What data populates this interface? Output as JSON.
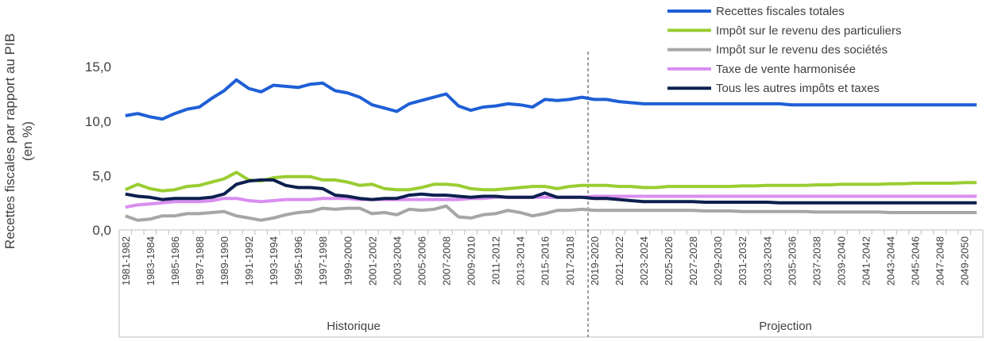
{
  "chart_data": {
    "type": "line",
    "y_label": "Recettes fiscales par rapport au PIB (en %)",
    "categories": [
      "1981-1982",
      null,
      "1983-1984",
      null,
      "1985-1986",
      null,
      "1987-1988",
      null,
      "1989-1990",
      null,
      "1991-1992",
      null,
      "1993-1994",
      null,
      "1995-1996",
      null,
      "1997-1998",
      null,
      "1999-2000",
      null,
      "2001-2002",
      null,
      "2003-2004",
      null,
      "2005-2006",
      null,
      "2007-2008",
      null,
      "2009-2010",
      null,
      "2011-2012",
      null,
      "2013-2014",
      null,
      "2015-2016",
      null,
      "2017-2018",
      null,
      "2019-2020",
      null,
      "2021-2022",
      null,
      "2023-2024",
      null,
      "2025-2026",
      null,
      "2027-2028",
      null,
      "2029-2030",
      null,
      "2031-2032",
      null,
      "2033-2034",
      null,
      "2035-2036",
      null,
      "2037-2038",
      null,
      "2039-2040",
      null,
      "2041-2042",
      null,
      "2043-2044",
      null,
      "2045-2046",
      null,
      "2047-2048",
      null,
      "2049-2050",
      null
    ],
    "groups": [
      "Historique",
      "Projection"
    ],
    "ylim": [
      0,
      16.4
    ],
    "yticks": [
      {
        "value": 0,
        "label": "0,0"
      },
      {
        "value": 5,
        "label": "5,0"
      },
      {
        "value": 10,
        "label": "10,0"
      },
      {
        "value": 15,
        "label": "15,0"
      }
    ],
    "series": [
      {
        "name": "Recettes fiscales totales",
        "color": "#1f5fd6",
        "values": [
          10.5,
          10.7,
          10.4,
          10.2,
          10.7,
          11.1,
          11.3,
          12.1,
          12.8,
          13.8,
          13.0,
          12.7,
          13.3,
          13.2,
          13.1,
          13.4,
          13.5,
          12.8,
          12.6,
          12.2,
          11.5,
          11.2,
          10.9,
          11.6,
          11.9,
          12.2,
          12.5,
          11.4,
          11.0,
          11.3,
          11.4,
          11.6,
          11.5,
          11.3,
          12.0,
          11.9,
          12.0,
          12.2,
          12.0,
          12.0,
          11.8,
          11.7,
          11.6,
          11.6,
          11.6,
          11.6,
          11.6,
          11.6,
          11.6,
          11.6,
          11.6,
          11.6,
          11.6,
          11.6,
          11.5,
          11.5,
          11.5,
          11.5,
          11.5,
          11.5,
          11.5,
          11.5,
          11.5,
          11.5,
          11.5,
          11.5,
          11.5,
          11.5,
          11.5,
          11.5
        ]
      },
      {
        "name": "Impôt sur le revenu des particuliers",
        "color": "#9acd32",
        "values": [
          3.7,
          4.2,
          3.8,
          3.6,
          3.7,
          4.0,
          4.1,
          4.4,
          4.7,
          5.3,
          4.6,
          4.5,
          4.8,
          4.9,
          4.9,
          4.9,
          4.6,
          4.6,
          4.4,
          4.1,
          4.2,
          3.8,
          3.7,
          3.7,
          3.9,
          4.2,
          4.2,
          4.1,
          3.8,
          3.7,
          3.7,
          3.8,
          3.9,
          4.0,
          4.0,
          3.8,
          4.0,
          4.1,
          4.1,
          4.1,
          4.0,
          4.0,
          3.9,
          3.9,
          4.0,
          4.0,
          4.0,
          4.0,
          4.0,
          4.0,
          4.05,
          4.05,
          4.1,
          4.1,
          4.1,
          4.1,
          4.15,
          4.15,
          4.2,
          4.2,
          4.2,
          4.2,
          4.25,
          4.25,
          4.3,
          4.3,
          4.3,
          4.3,
          4.35,
          4.35
        ]
      },
      {
        "name": "Impôt sur le revenu des sociétés",
        "color": "#a6a6a6",
        "values": [
          1.3,
          0.9,
          1.0,
          1.3,
          1.3,
          1.5,
          1.5,
          1.6,
          1.7,
          1.3,
          1.1,
          0.9,
          1.1,
          1.4,
          1.6,
          1.7,
          2.0,
          1.9,
          2.0,
          2.0,
          1.5,
          1.6,
          1.4,
          1.9,
          1.8,
          1.9,
          2.2,
          1.2,
          1.1,
          1.4,
          1.5,
          1.8,
          1.6,
          1.3,
          1.5,
          1.8,
          1.8,
          1.9,
          1.8,
          1.8,
          1.8,
          1.8,
          1.8,
          1.8,
          1.8,
          1.8,
          1.8,
          1.75,
          1.75,
          1.75,
          1.7,
          1.7,
          1.7,
          1.7,
          1.7,
          1.7,
          1.65,
          1.65,
          1.65,
          1.65,
          1.65,
          1.65,
          1.6,
          1.6,
          1.6,
          1.6,
          1.6,
          1.6,
          1.6,
          1.6
        ]
      },
      {
        "name": "Taxe de vente harmonisée",
        "color": "#d98ef0",
        "values": [
          2.1,
          2.3,
          2.4,
          2.5,
          2.6,
          2.6,
          2.6,
          2.7,
          2.9,
          2.9,
          2.7,
          2.6,
          2.7,
          2.8,
          2.8,
          2.8,
          2.9,
          2.9,
          2.9,
          2.8,
          2.8,
          2.8,
          2.8,
          2.8,
          2.8,
          2.8,
          2.8,
          2.8,
          2.9,
          2.9,
          3.0,
          3.0,
          3.0,
          3.0,
          3.0,
          3.0,
          3.0,
          3.0,
          3.1,
          3.1,
          3.1,
          3.1,
          3.1,
          3.1,
          3.1,
          3.1,
          3.1,
          3.1,
          3.1,
          3.1,
          3.1,
          3.1,
          3.1,
          3.1,
          3.1,
          3.1,
          3.1,
          3.1,
          3.1,
          3.1,
          3.1,
          3.1,
          3.1,
          3.1,
          3.1,
          3.1,
          3.1,
          3.1,
          3.1,
          3.1
        ]
      },
      {
        "name": "Tous les autres impôts et taxes",
        "color": "#0d1f4f",
        "values": [
          3.3,
          3.1,
          3.0,
          2.8,
          2.9,
          2.9,
          2.9,
          3.0,
          3.3,
          4.2,
          4.5,
          4.6,
          4.6,
          4.1,
          3.9,
          3.9,
          3.8,
          3.2,
          3.1,
          2.9,
          2.8,
          2.9,
          2.9,
          3.2,
          3.3,
          3.2,
          3.2,
          3.1,
          3.0,
          3.1,
          3.1,
          3.0,
          3.0,
          3.0,
          3.4,
          3.0,
          3.0,
          3.0,
          2.9,
          2.9,
          2.8,
          2.7,
          2.6,
          2.6,
          2.6,
          2.6,
          2.6,
          2.55,
          2.55,
          2.55,
          2.55,
          2.55,
          2.55,
          2.5,
          2.5,
          2.5,
          2.5,
          2.5,
          2.5,
          2.5,
          2.5,
          2.5,
          2.5,
          2.5,
          2.5,
          2.5,
          2.5,
          2.5,
          2.5,
          2.5
        ]
      }
    ]
  }
}
